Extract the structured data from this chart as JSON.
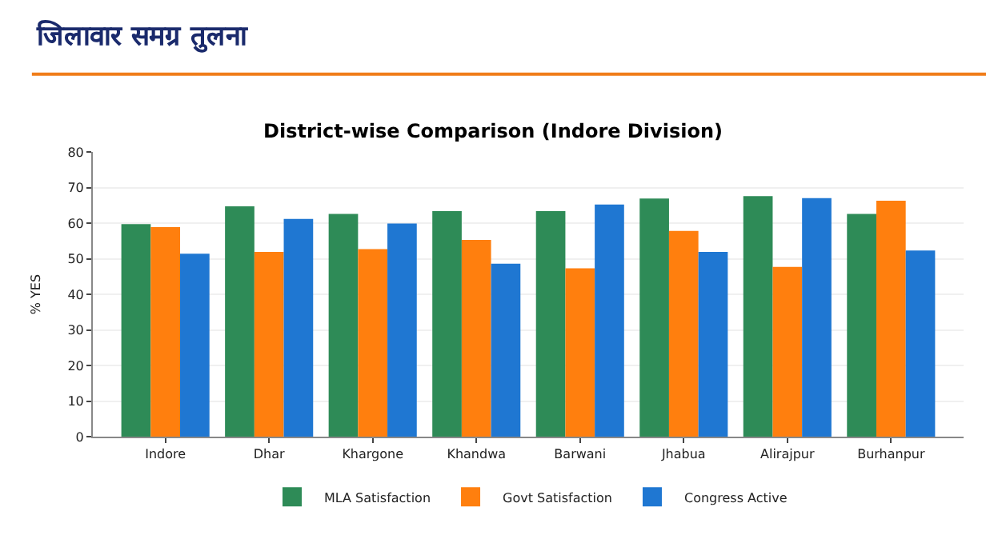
{
  "chart_data": {
    "type": "bar",
    "title": "District-wise Comparison (Indore Division)",
    "ylabel": "% YES",
    "annotations": [
      "जिलावार समग्र तुलना"
    ],
    "categories": [
      "Indore",
      "Dhar",
      "Khargone",
      "Khandwa",
      "Barwani",
      "Jhabua",
      "Alirajpur",
      "Burhanpur"
    ],
    "series": [
      {
        "name": "MLA Satisfaction",
        "color": "#2e8b57",
        "values": [
          59.7,
          64.7,
          62.6,
          63.4,
          63.4,
          66.9,
          67.6,
          62.6
        ]
      },
      {
        "name": "Govt Satisfaction",
        "color": "#ff7f0e",
        "values": [
          58.9,
          51.9,
          52.7,
          55.3,
          47.3,
          57.8,
          47.7,
          66.3
        ]
      },
      {
        "name": "Congress Active",
        "color": "#1f77d2",
        "values": [
          51.4,
          61.2,
          59.9,
          48.6,
          65.2,
          51.9,
          67.0,
          52.3
        ]
      }
    ],
    "ylim": [
      0,
      80
    ],
    "yticks": [
      0,
      10,
      20,
      30,
      40,
      50,
      60,
      70,
      80
    ],
    "grid": "y",
    "legend": "bottom"
  }
}
